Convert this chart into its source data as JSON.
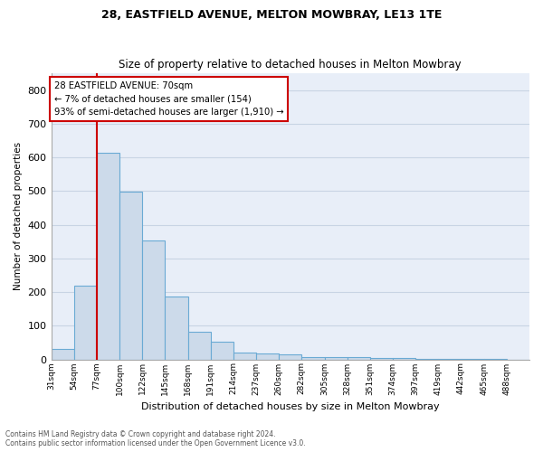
{
  "title1": "28, EASTFIELD AVENUE, MELTON MOWBRAY, LE13 1TE",
  "title2": "Size of property relative to detached houses in Melton Mowbray",
  "xlabel": "Distribution of detached houses by size in Melton Mowbray",
  "ylabel": "Number of detached properties",
  "bin_labels": [
    "31sqm",
    "54sqm",
    "77sqm",
    "100sqm",
    "122sqm",
    "145sqm",
    "168sqm",
    "191sqm",
    "214sqm",
    "237sqm",
    "260sqm",
    "282sqm",
    "305sqm",
    "328sqm",
    "351sqm",
    "374sqm",
    "397sqm",
    "419sqm",
    "442sqm",
    "465sqm",
    "488sqm"
  ],
  "bar_heights": [
    32,
    218,
    614,
    497,
    354,
    188,
    83,
    52,
    21,
    18,
    14,
    8,
    6,
    6,
    5,
    5,
    2,
    2,
    1,
    1,
    0
  ],
  "bar_color": "#ccdaea",
  "bar_edgecolor": "#6aaad4",
  "bar_linewidth": 0.8,
  "grid_color": "#c8d4e4",
  "background_color": "#e8eef8",
  "red_line_color": "#cc0000",
  "annotation_text": "28 EASTFIELD AVENUE: 70sqm\n← 7% of detached houses are smaller (154)\n93% of semi-detached houses are larger (1,910) →",
  "annotation_box_color": "#cc0000",
  "ylim": [
    0,
    850
  ],
  "yticks": [
    0,
    100,
    200,
    300,
    400,
    500,
    600,
    700,
    800
  ],
  "footer1": "Contains HM Land Registry data © Crown copyright and database right 2024.",
  "footer2": "Contains public sector information licensed under the Open Government Licence v3.0."
}
